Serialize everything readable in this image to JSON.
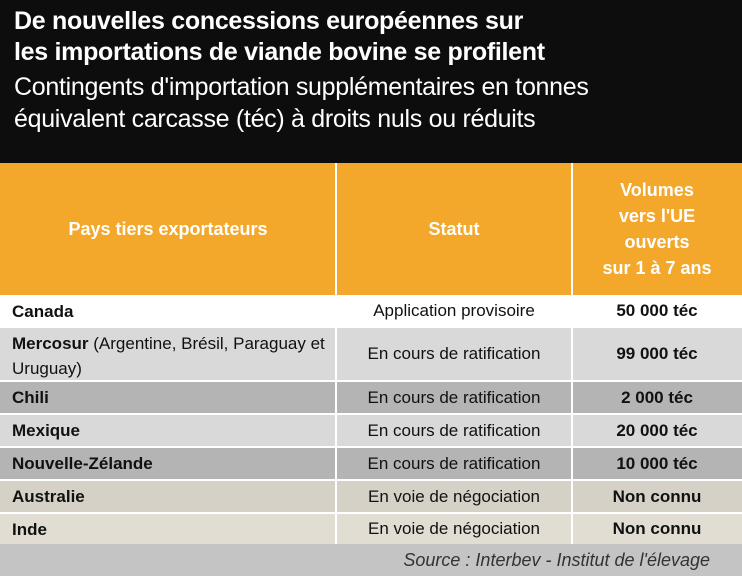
{
  "chart_data": {
    "type": "table",
    "title_lines": [
      "De nouvelles concessions européennes sur",
      "les importations de viande bovine se profilent"
    ],
    "subtitle_lines": [
      "Contingents d'importation supplémentaires en tonnes",
      "équivalent carcasse (téc) à droits nuls ou réduits"
    ],
    "columns": [
      "Pays tiers exportateurs",
      "Statut",
      "Volumes\nvers l'UE\nouverts\nsur 1 à 7 ans"
    ],
    "rows": [
      {
        "country": "Canada",
        "note": "",
        "status": "Application provisoire",
        "volume": "50 000 téc",
        "volume_tec": 50000,
        "bg": "#ffffff"
      },
      {
        "country": "Mercosur",
        "note": "(Argentine, Brésil, Paraguay et Uruguay)",
        "status": "En cours de ratification",
        "volume": "99 000 téc",
        "volume_tec": 99000,
        "bg": "#d9d9d9"
      },
      {
        "country": "Chili",
        "note": "",
        "status": "En cours de ratification",
        "volume": "2 000 téc",
        "volume_tec": 2000,
        "bg": "#b4b4b4"
      },
      {
        "country": "Mexique",
        "note": "",
        "status": "En cours de ratification",
        "volume": "20 000 téc",
        "volume_tec": 20000,
        "bg": "#d9d9d9"
      },
      {
        "country": "Nouvelle-Zélande",
        "note": "",
        "status": "En cours de ratification",
        "volume": "10 000 téc",
        "volume_tec": 10000,
        "bg": "#b4b4b4"
      },
      {
        "country": "Australie",
        "note": "",
        "status": "En voie de négociation",
        "volume": "Non connu",
        "volume_tec": null,
        "bg": "#d6d1c7"
      },
      {
        "country": "Inde",
        "note": "",
        "status": "En voie de négociation",
        "volume": "Non connu",
        "volume_tec": null,
        "bg": "#e2ddd3"
      }
    ],
    "source": "Source : Interbev - Institut de l'élevage",
    "colors": {
      "header_bg": "#0d0d0d",
      "column_header_bg": "#f3a82b",
      "source_bg": "#c4c4c4"
    }
  }
}
